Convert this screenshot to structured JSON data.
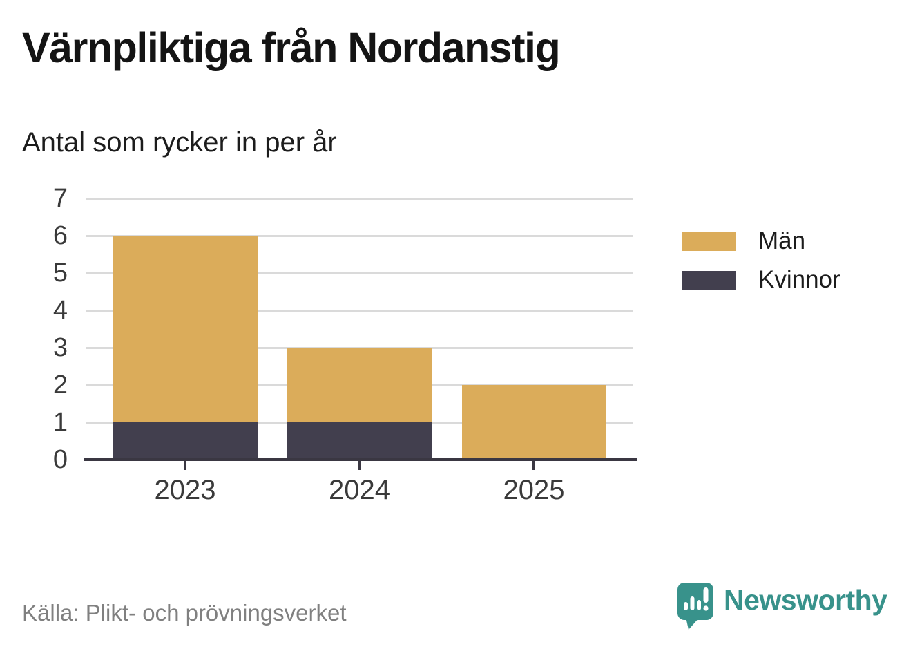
{
  "header": {
    "title": "Värnpliktiga från Nordanstig",
    "subtitle": "Antal som rycker in per år"
  },
  "chart_data": {
    "type": "bar",
    "stacked": true,
    "title": "Värnpliktiga från Nordanstig",
    "subtitle": "Antal som rycker in per år",
    "categories": [
      "2023",
      "2024",
      "2025"
    ],
    "series": [
      {
        "name": "Män",
        "color": "#dbac5a",
        "values": [
          5,
          2,
          2
        ]
      },
      {
        "name": "Kvinnor",
        "color": "#423f4e",
        "values": [
          1,
          1,
          0
        ]
      }
    ],
    "stack_order_bottom_to_top": [
      "Kvinnor",
      "Män"
    ],
    "totals": [
      6,
      3,
      2
    ],
    "xlabel": "",
    "ylabel": "",
    "ylim": [
      0,
      7
    ],
    "yticks": [
      0,
      1,
      2,
      3,
      4,
      5,
      6,
      7
    ],
    "grid": true,
    "legend_position": "right"
  },
  "legend": {
    "items": [
      {
        "label": "Män",
        "color": "#dbac5a"
      },
      {
        "label": "Kvinnor",
        "color": "#423f4e"
      }
    ]
  },
  "footer": {
    "source": "Källa: Plikt- och prövningsverket",
    "brand": "Newsworthy"
  },
  "colors": {
    "men": "#dbac5a",
    "women": "#423f4e",
    "axis": "#3a3742",
    "grid": "#dadada",
    "tick_text": "#3a3a3a",
    "source_text": "#808080",
    "brand_teal": "#38928b"
  }
}
